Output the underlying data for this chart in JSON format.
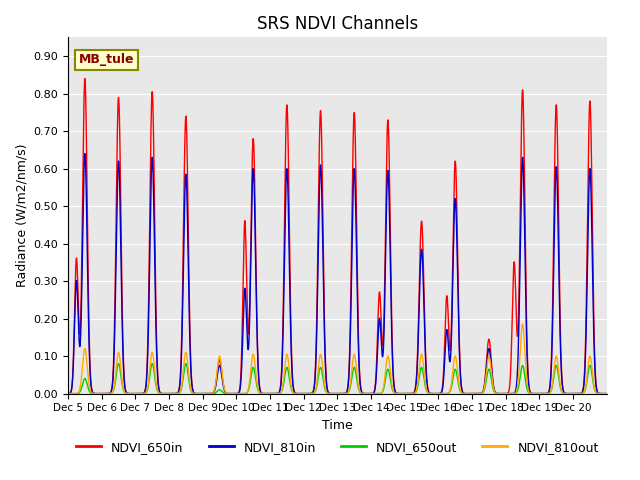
{
  "title": "SRS NDVI Channels",
  "ylabel": "Radiance (W/m2/nm/s)",
  "xlabel": "Time",
  "annotation": "MB_tule",
  "bg_color": "#e8e8e8",
  "legend": [
    {
      "label": "NDVI_650in",
      "color": "#ff0000"
    },
    {
      "label": "NDVI_810in",
      "color": "#0000cc"
    },
    {
      "label": "NDVI_650out",
      "color": "#00cc00"
    },
    {
      "label": "NDVI_810out",
      "color": "#ffaa00"
    }
  ],
  "ylim": [
    0.0,
    0.95
  ],
  "yticks": [
    0.0,
    0.1,
    0.2,
    0.3,
    0.4,
    0.5,
    0.6,
    0.7,
    0.8,
    0.9
  ],
  "xtick_labels": [
    "Dec 5",
    "Dec 6",
    "Dec 7",
    "Dec 8",
    "Dec 9",
    "Dec 10",
    "Dec 11",
    "Dec 12",
    "Dec 13",
    "Dec 14",
    "Dec 15",
    "Dec 16",
    "Dec 17",
    "Dec 18",
    "Dec 19",
    "Dec 20"
  ],
  "daily_peaks_650in": [
    0.84,
    0.79,
    0.805,
    0.74,
    0.09,
    0.68,
    0.77,
    0.755,
    0.75,
    0.73,
    0.46,
    0.62,
    0.145,
    0.81,
    0.77,
    0.78
  ],
  "daily_peaks_810in": [
    0.64,
    0.62,
    0.63,
    0.585,
    0.075,
    0.6,
    0.6,
    0.61,
    0.6,
    0.595,
    0.385,
    0.52,
    0.12,
    0.63,
    0.605,
    0.6
  ],
  "daily_peaks_650out": [
    0.04,
    0.08,
    0.08,
    0.08,
    0.01,
    0.07,
    0.07,
    0.07,
    0.07,
    0.065,
    0.07,
    0.065,
    0.065,
    0.075,
    0.075,
    0.075
  ],
  "daily_peaks_810out": [
    0.12,
    0.11,
    0.11,
    0.11,
    0.1,
    0.105,
    0.105,
    0.105,
    0.105,
    0.1,
    0.105,
    0.1,
    0.1,
    0.185,
    0.1,
    0.1
  ],
  "secondary_peaks_650in": [
    0.36,
    0.0,
    0.0,
    0.0,
    0.0,
    0.46,
    0.0,
    0.0,
    0.0,
    0.27,
    0.0,
    0.26,
    0.0,
    0.35,
    0.0,
    0.0
  ],
  "secondary_peaks_810in": [
    0.3,
    0.0,
    0.0,
    0.0,
    0.0,
    0.28,
    0.0,
    0.0,
    0.0,
    0.2,
    0.0,
    0.17,
    0.0,
    0.0,
    0.0,
    0.0
  ]
}
